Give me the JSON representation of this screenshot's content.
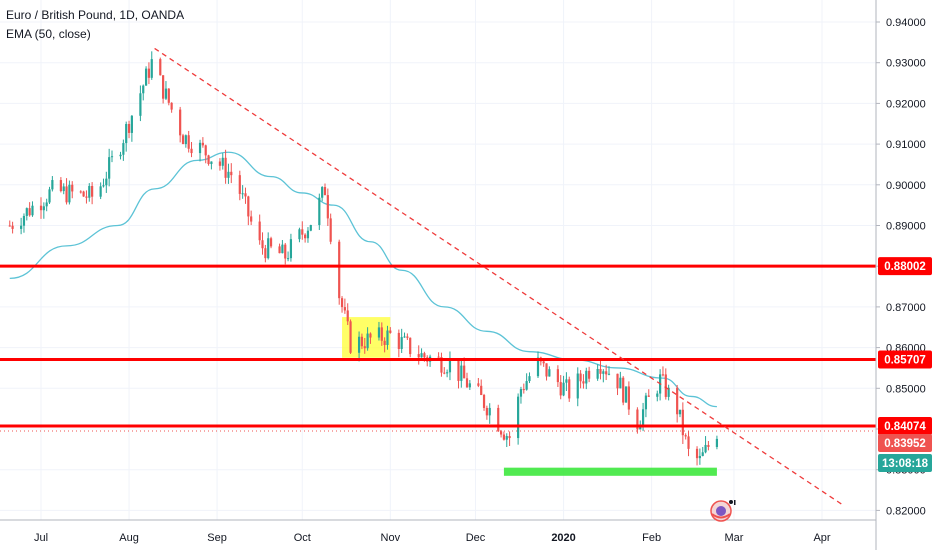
{
  "legend": {
    "symbol_line": "Euro / British Pound, 1D, OANDA",
    "indicator_line": "EMA (50, close)"
  },
  "colors": {
    "up": "#26a69a",
    "down": "#ef5350",
    "ema": "#5cc3d6",
    "level_line": "#ff0000",
    "trendline": "#ef3b3b",
    "consolidation_box": "#ffff33",
    "support_box": "#33e633",
    "price_badge": "#ef5350",
    "countdown_badge": "#26a69a",
    "axis_text": "#131722"
  },
  "chart_data": {
    "type": "candlestick",
    "symbol": "EURGBP",
    "interval": "1D",
    "source": "OANDA",
    "y_axis": {
      "ylim": [
        0.8175,
        0.9445
      ],
      "ticks": [
        "0.94000",
        "0.93000",
        "0.92000",
        "0.91000",
        "0.90000",
        "0.89000",
        "0.88000",
        "0.87000",
        "0.86000",
        "0.85000",
        "0.84000",
        "0.83000",
        "0.82000"
      ]
    },
    "x_axis": {
      "ticks": [
        {
          "label": "Jul",
          "date": "2019-07-01"
        },
        {
          "label": "Aug",
          "date": "2019-08-01"
        },
        {
          "label": "Sep",
          "date": "2019-09-01"
        },
        {
          "label": "Oct",
          "date": "2019-10-01"
        },
        {
          "label": "Nov",
          "date": "2019-11-01"
        },
        {
          "label": "Dec",
          "date": "2019-12-01"
        },
        {
          "label": "2020",
          "date": "2020-01-01",
          "bold": true
        },
        {
          "label": "Feb",
          "date": "2020-02-01"
        },
        {
          "label": "Mar",
          "date": "2020-03-01"
        },
        {
          "label": "Apr",
          "date": "2020-04-01"
        }
      ]
    },
    "close_path": [
      {
        "date": "2019-06-20",
        "close": 0.89
      },
      {
        "date": "2019-07-05",
        "close": 0.8985
      },
      {
        "date": "2019-07-20",
        "close": 0.897
      },
      {
        "date": "2019-07-29",
        "close": 0.91
      },
      {
        "date": "2019-08-09",
        "close": 0.93
      },
      {
        "date": "2019-08-20",
        "close": 0.912
      },
      {
        "date": "2019-08-28",
        "close": 0.908
      },
      {
        "date": "2019-09-07",
        "close": 0.902
      },
      {
        "date": "2019-09-16",
        "close": 0.885
      },
      {
        "date": "2019-09-25",
        "close": 0.8825
      },
      {
        "date": "2019-10-05",
        "close": 0.892
      },
      {
        "date": "2019-10-09",
        "close": 0.899
      },
      {
        "date": "2019-10-14",
        "close": 0.873
      },
      {
        "date": "2019-10-18",
        "close": 0.861
      },
      {
        "date": "2019-11-01",
        "close": 0.863
      },
      {
        "date": "2019-11-12",
        "close": 0.858
      },
      {
        "date": "2019-11-22",
        "close": 0.856
      },
      {
        "date": "2019-12-06",
        "close": 0.845
      },
      {
        "date": "2019-12-11",
        "close": 0.8395
      },
      {
        "date": "2019-12-13",
        "close": 0.838
      },
      {
        "date": "2019-12-17",
        "close": 0.85
      },
      {
        "date": "2019-12-23",
        "close": 0.856
      },
      {
        "date": "2020-01-03",
        "close": 0.849
      },
      {
        "date": "2020-01-13",
        "close": 0.857
      },
      {
        "date": "2020-01-20",
        "close": 0.852
      },
      {
        "date": "2020-01-27",
        "close": 0.842
      },
      {
        "date": "2020-02-04",
        "close": 0.852
      },
      {
        "date": "2020-02-10",
        "close": 0.845
      },
      {
        "date": "2020-02-14",
        "close": 0.834
      },
      {
        "date": "2020-02-18",
        "close": 0.832
      },
      {
        "date": "2020-02-24",
        "close": 0.8395
      }
    ],
    "ema": {
      "name": "EMA (50, close)",
      "points": [
        {
          "date": "2019-06-20",
          "value": 0.877
        },
        {
          "date": "2019-07-10",
          "value": 0.885
        },
        {
          "date": "2019-07-28",
          "value": 0.89
        },
        {
          "date": "2019-08-10",
          "value": 0.899
        },
        {
          "date": "2019-08-25",
          "value": 0.906
        },
        {
          "date": "2019-09-05",
          "value": 0.908
        },
        {
          "date": "2019-09-20",
          "value": 0.902
        },
        {
          "date": "2019-10-01",
          "value": 0.898
        },
        {
          "date": "2019-10-12",
          "value": 0.895
        },
        {
          "date": "2019-10-25",
          "value": 0.886
        },
        {
          "date": "2019-11-05",
          "value": 0.879
        },
        {
          "date": "2019-11-20",
          "value": 0.87
        },
        {
          "date": "2019-12-05",
          "value": 0.864
        },
        {
          "date": "2019-12-20",
          "value": 0.859
        },
        {
          "date": "2020-01-05",
          "value": 0.857
        },
        {
          "date": "2020-01-20",
          "value": 0.855
        },
        {
          "date": "2020-02-05",
          "value": 0.8525
        },
        {
          "date": "2020-02-15",
          "value": 0.848
        },
        {
          "date": "2020-02-24",
          "value": 0.8455
        }
      ]
    },
    "levels": [
      {
        "price": 0.88002,
        "label": "0.88002"
      },
      {
        "price": 0.85707,
        "label": "0.85707"
      },
      {
        "price": 0.84074,
        "label": "0.84074"
      }
    ],
    "last_price": {
      "price": 0.83952,
      "label": "0.83952",
      "countdown": "13:08:18"
    },
    "trendline": {
      "start": {
        "date": "2019-08-10",
        "price": 0.9335
      },
      "end": {
        "date": "2020-04-08",
        "price": 0.8215
      }
    },
    "zones": [
      {
        "name": "consolidation",
        "start": "2019-10-15",
        "end": "2019-11-01",
        "top": 0.8675,
        "bottom": 0.8575
      },
      {
        "name": "support",
        "start": "2019-12-11",
        "end": "2020-02-24",
        "top": 0.8305,
        "bottom": 0.8285
      }
    ],
    "grid": true
  },
  "watermark": {
    "icon": "tradingview-emoji-logo"
  }
}
